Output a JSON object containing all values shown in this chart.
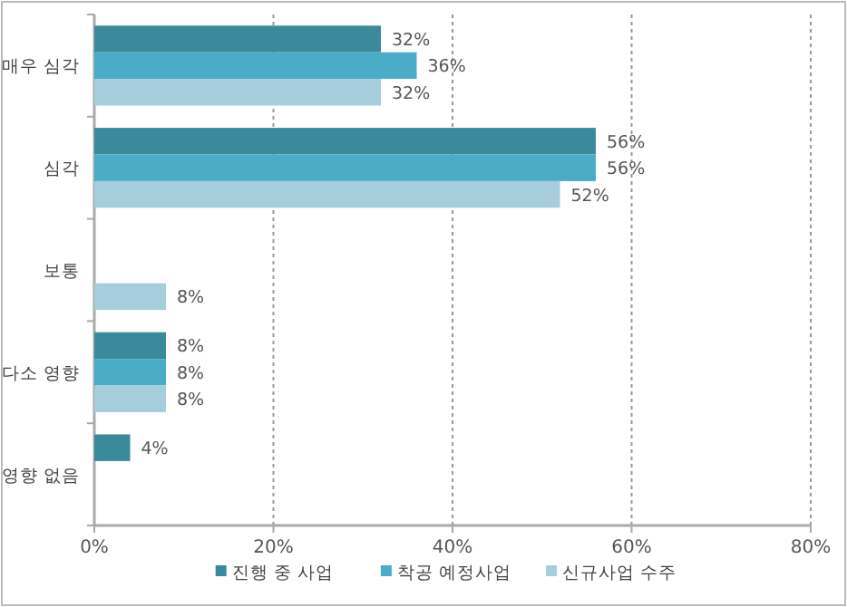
{
  "chart_data": {
    "type": "bar",
    "orientation": "horizontal",
    "categories": [
      "매우 심각",
      "심각",
      "보통",
      "다소 영향",
      "영향 없음"
    ],
    "series": [
      {
        "name": "진행 중 사업",
        "color": "#3a8a9c",
        "values": [
          32,
          56,
          null,
          8,
          4
        ],
        "value_labels": [
          "32%",
          "56%",
          null,
          "8%",
          "4%"
        ]
      },
      {
        "name": "착공 예정사업",
        "color": "#4aacc6",
        "values": [
          36,
          56,
          null,
          8,
          null
        ],
        "value_labels": [
          "36%",
          "56%",
          null,
          "8%",
          null
        ]
      },
      {
        "name": "신규사업 수주",
        "color": "#a6cddb",
        "values": [
          32,
          52,
          8,
          8,
          null
        ],
        "value_labels": [
          "32%",
          "52%",
          "8%",
          "8%",
          null
        ]
      }
    ],
    "xlim": [
      0,
      80
    ],
    "xticks": [
      {
        "value": 0,
        "label": "0%"
      },
      {
        "value": 20,
        "label": "20%"
      },
      {
        "value": 40,
        "label": "40%"
      },
      {
        "value": 60,
        "label": "60%"
      },
      {
        "value": 80,
        "label": "80%"
      }
    ],
    "grid": "x",
    "legend": "bottom"
  }
}
